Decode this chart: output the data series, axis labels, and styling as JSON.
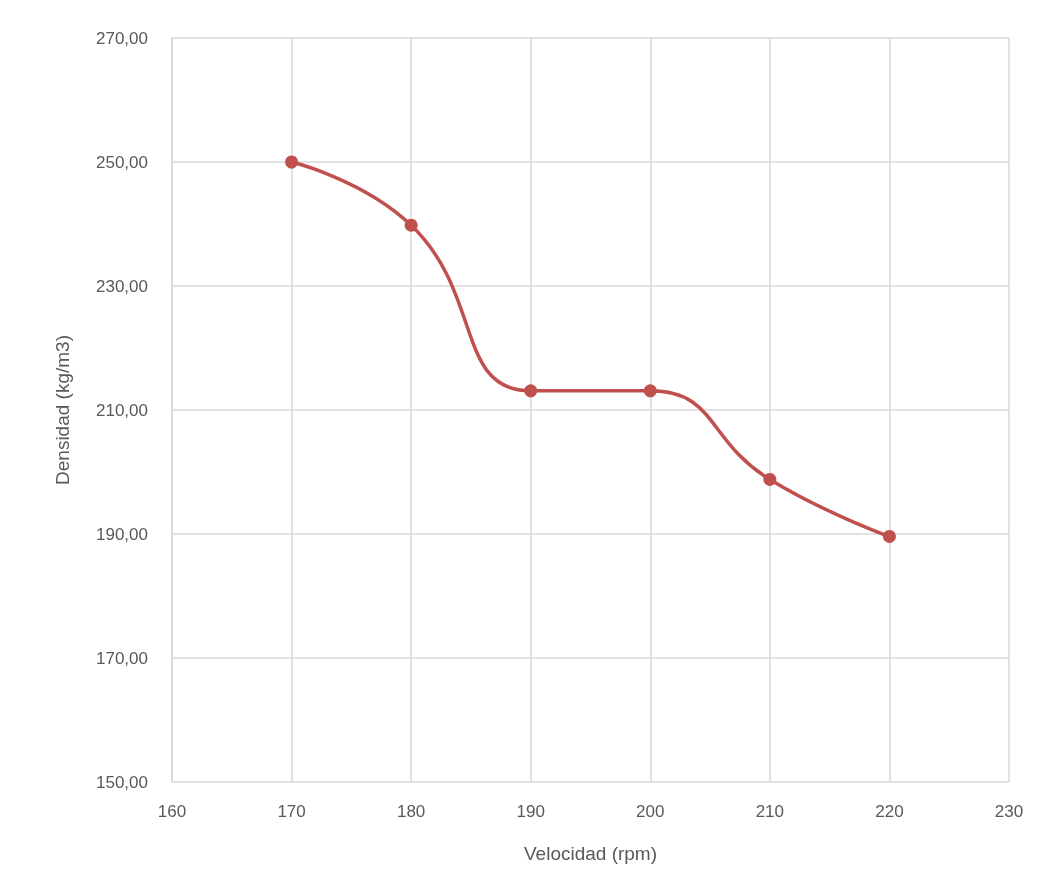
{
  "chart_data": {
    "type": "line",
    "xlabel": "Velocidad (rpm)",
    "ylabel": "Densidad (kg/m3)",
    "x": [
      170,
      180,
      190,
      200,
      210,
      220
    ],
    "series": [
      {
        "color": "#c0504d",
        "values": [
          250.0,
          239.8,
          213.1,
          213.1,
          198.8,
          189.6
        ]
      }
    ],
    "xlim": [
      160,
      230
    ],
    "xticks": [
      160,
      170,
      180,
      190,
      200,
      210,
      220,
      230
    ],
    "ylim": [
      150,
      270
    ],
    "yticks": [
      {
        "value": 150,
        "label": "150,00"
      },
      {
        "value": 170,
        "label": "170,00"
      },
      {
        "value": 190,
        "label": "190,00"
      },
      {
        "value": 210,
        "label": "210,00"
      },
      {
        "value": 230,
        "label": "230,00"
      },
      {
        "value": 250,
        "label": "250,00"
      },
      {
        "value": 270,
        "label": "270,00"
      }
    ],
    "grid": true,
    "marker": "circle",
    "line_style": "solid"
  }
}
